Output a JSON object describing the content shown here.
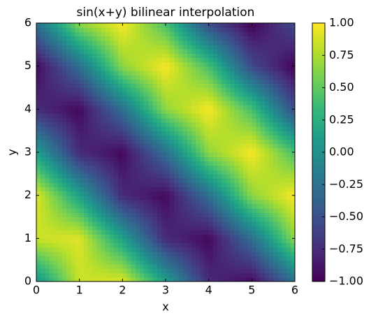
{
  "chart_data": {
    "type": "heatmap",
    "title": "sin(x+y) bilinear interpolation",
    "x_label": "x",
    "y_label": "y",
    "x": [
      0,
      1,
      2,
      3,
      4,
      5,
      6
    ],
    "y": [
      0,
      1,
      2,
      3,
      4,
      5,
      6
    ],
    "z": [
      [
        0,
        0.841,
        0.909,
        0.141,
        -0.757,
        -0.959,
        -0.279
      ],
      [
        0.841,
        0.909,
        0.141,
        -0.757,
        -0.959,
        -0.279,
        0.657
      ],
      [
        0.909,
        0.141,
        -0.757,
        -0.959,
        -0.279,
        0.657,
        0.989
      ],
      [
        0.141,
        -0.757,
        -0.959,
        -0.279,
        0.657,
        0.989,
        0.412
      ],
      [
        -0.757,
        -0.959,
        -0.279,
        0.657,
        0.989,
        0.412,
        -0.544
      ],
      [
        -0.959,
        -0.279,
        0.657,
        0.989,
        0.412,
        -0.544,
        -1.0
      ],
      [
        -0.279,
        0.657,
        0.989,
        0.412,
        -0.544,
        -1.0,
        -0.537
      ]
    ],
    "interpolation": "bilinear",
    "colormap": "viridis",
    "xlim": [
      0,
      6
    ],
    "ylim": [
      0,
      6
    ],
    "xticks": [
      0,
      1,
      2,
      3,
      4,
      5,
      6
    ],
    "yticks": [
      0,
      1,
      2,
      3,
      4,
      5,
      6
    ],
    "zlim": [
      -1,
      1
    ],
    "zticks": [
      {
        "value": -1,
        "label": "−1.00"
      },
      {
        "value": -0.75,
        "label": "−0.75"
      },
      {
        "value": -0.5,
        "label": "−0.50"
      },
      {
        "value": -0.25,
        "label": "−0.25"
      },
      {
        "value": 0,
        "label": "0.00"
      },
      {
        "value": 0.25,
        "label": "0.25"
      },
      {
        "value": 0.5,
        "label": "0.50"
      },
      {
        "value": 0.75,
        "label": "0.75"
      },
      {
        "value": 1,
        "label": "1.00"
      }
    ]
  }
}
